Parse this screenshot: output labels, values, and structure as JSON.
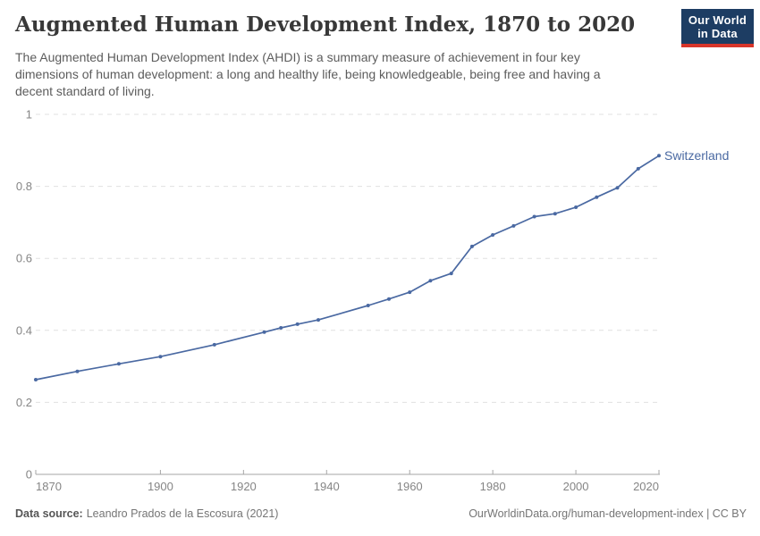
{
  "header": {
    "title": "Augmented Human Development Index, 1870 to 2020",
    "subtitle": "The Augmented Human Development Index (AHDI) is a summary measure of achievement in four key\ndimensions of human development: a long and healthy life, being knowledgeable, being free and having a\ndecent standard of living."
  },
  "logo": {
    "text": "Our World\nin Data",
    "bg_color": "#1d3d63",
    "accent_color": "#d8352a"
  },
  "chart_data": {
    "type": "line",
    "title": "Augmented Human Development Index, 1870 to 2020",
    "xlabel": "",
    "ylabel": "",
    "xlim": [
      1870,
      2020
    ],
    "ylim": [
      0,
      1
    ],
    "grid": "horizontal-dashed",
    "legend_position": "end-of-line-label",
    "x": [
      1870,
      1880,
      1890,
      1900,
      1913,
      1925,
      1929,
      1933,
      1938,
      1950,
      1955,
      1960,
      1965,
      1970,
      1975,
      1980,
      1985,
      1990,
      1995,
      2000,
      2005,
      2010,
      2015,
      2020
    ],
    "series": [
      {
        "name": "Switzerland",
        "color": "#4a69a2",
        "values": [
          0.263,
          0.286,
          0.307,
          0.327,
          0.36,
          0.395,
          0.407,
          0.417,
          0.429,
          0.469,
          0.487,
          0.506,
          0.538,
          0.558,
          0.633,
          0.665,
          0.69,
          0.716,
          0.724,
          0.742,
          0.77,
          0.796,
          0.849,
          0.885
        ]
      }
    ],
    "y_ticks": [
      {
        "value": 0,
        "label": "0"
      },
      {
        "value": 0.2,
        "label": "0.2"
      },
      {
        "value": 0.4,
        "label": "0.4"
      },
      {
        "value": 0.6,
        "label": "0.6"
      },
      {
        "value": 0.8,
        "label": "0.8"
      },
      {
        "value": 1,
        "label": "1"
      }
    ],
    "x_ticks": [
      {
        "value": 1870,
        "label": "1870"
      },
      {
        "value": 1900,
        "label": "1900"
      },
      {
        "value": 1920,
        "label": "1920"
      },
      {
        "value": 1940,
        "label": "1940"
      },
      {
        "value": 1960,
        "label": "1960"
      },
      {
        "value": 1980,
        "label": "1980"
      },
      {
        "value": 2000,
        "label": "2000"
      },
      {
        "value": 2020,
        "label": "2020"
      }
    ],
    "style": {
      "grid_color": "#e0e0e0",
      "axis_color": "#a5a5a5",
      "tick_label_color": "#858585"
    }
  },
  "footer": {
    "source_label": "Data source:",
    "source_text": "Leandro Prados de la Escosura (2021)",
    "credit": "OurWorldinData.org/human-development-index | CC BY"
  }
}
